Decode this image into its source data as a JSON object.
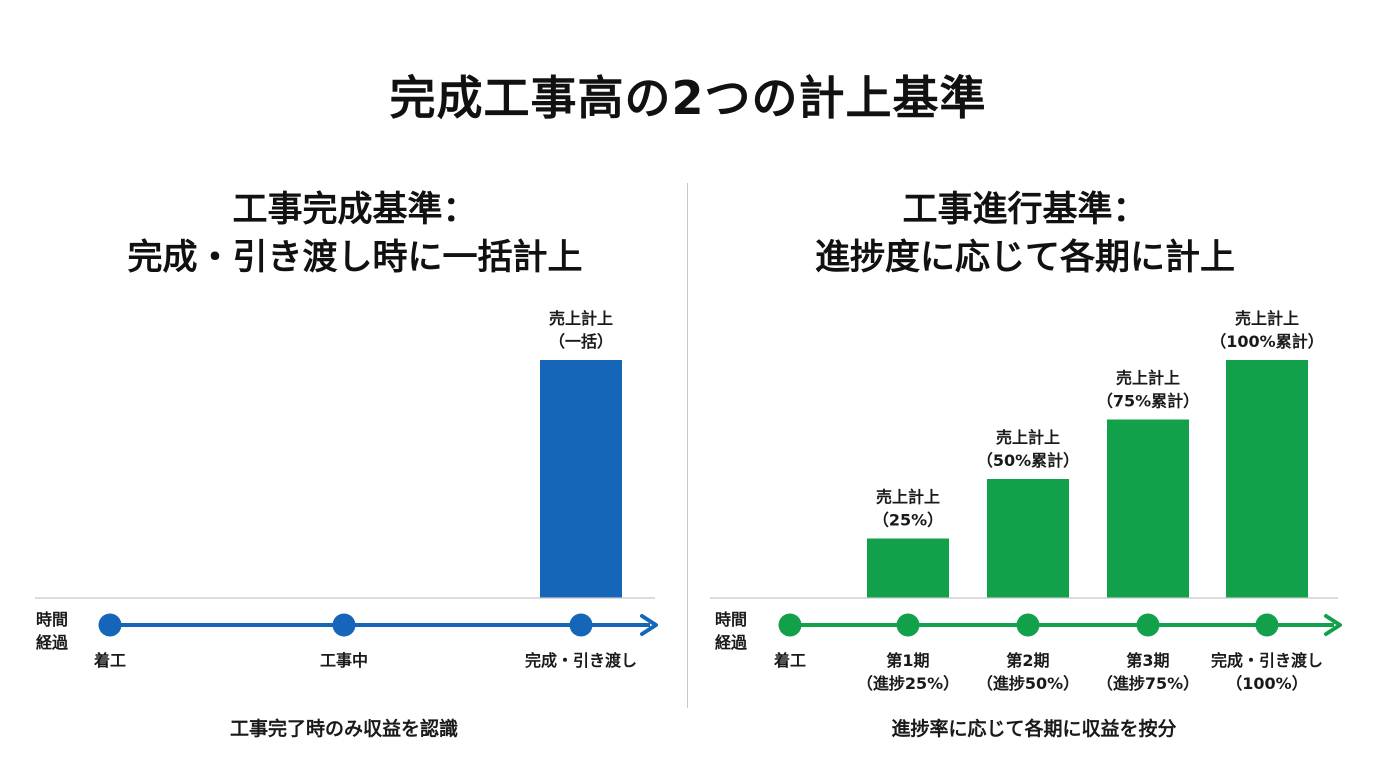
{
  "title": "完成工事高の2つの計上基準",
  "colors": {
    "completion": "#1565b8",
    "percentage": "#13a04a",
    "baseline": "#c8c8c8",
    "text": "#111111"
  },
  "axis_label": [
    "時間",
    "経過"
  ],
  "completion_method": {
    "heading": [
      "工事完成基準：",
      "完成・引き渡し時に一括計上"
    ],
    "milestones": [
      {
        "label": [
          "着工"
        ]
      },
      {
        "label": [
          "工事中"
        ]
      },
      {
        "label": [
          "完成・引き渡し"
        ]
      }
    ],
    "revenue": [
      {
        "milestone": 2,
        "share": 1.0,
        "label": [
          "売上計上",
          "（一括）"
        ]
      }
    ],
    "caption": "工事完了時のみ収益を認識"
  },
  "percentage_method": {
    "heading": [
      "工事進行基準：",
      "進捗度に応じて各期に計上"
    ],
    "milestones": [
      {
        "label": [
          "着工"
        ]
      },
      {
        "label": [
          "第1期",
          "（進捗25%）"
        ]
      },
      {
        "label": [
          "第2期",
          "（進捗50%）"
        ]
      },
      {
        "label": [
          "第3期",
          "（進捗75%）"
        ]
      },
      {
        "label": [
          "完成・引き渡し",
          "（100%）"
        ]
      }
    ],
    "revenue": [
      {
        "milestone": 1,
        "share": 0.25,
        "label": [
          "売上計上",
          "（25%）"
        ]
      },
      {
        "milestone": 2,
        "share": 0.5,
        "label": [
          "売上計上",
          "（50%累計）"
        ]
      },
      {
        "milestone": 3,
        "share": 0.75,
        "label": [
          "売上計上",
          "（75%累計）"
        ]
      },
      {
        "milestone": 4,
        "share": 1.0,
        "label": [
          "売上計上",
          "（100%累計）"
        ]
      }
    ],
    "caption": "進捗率に応じて各期に収益を按分"
  }
}
